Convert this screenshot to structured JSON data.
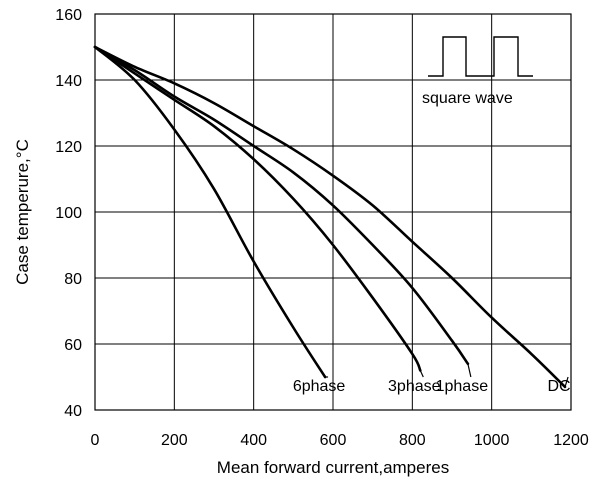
{
  "chart_data": {
    "type": "line",
    "xlabel": "Mean forward current,amperes",
    "ylabel": "Case temperure,°C",
    "xlim": [
      0,
      1200
    ],
    "ylim": [
      40,
      160
    ],
    "xticks": [
      0,
      200,
      400,
      600,
      800,
      1000,
      1200
    ],
    "yticks": [
      40,
      60,
      80,
      100,
      120,
      140,
      160
    ],
    "grid": true,
    "legend": "none",
    "annotation": "square wave",
    "series": [
      {
        "name": "6phase",
        "points": [
          [
            0,
            150
          ],
          [
            100,
            140
          ],
          [
            200,
            125
          ],
          [
            300,
            107
          ],
          [
            400,
            85
          ],
          [
            500,
            65
          ],
          [
            580,
            50
          ]
        ]
      },
      {
        "name": "3phase",
        "points": [
          [
            0,
            150
          ],
          [
            100,
            142
          ],
          [
            200,
            134
          ],
          [
            300,
            126
          ],
          [
            400,
            116
          ],
          [
            500,
            104
          ],
          [
            600,
            90
          ],
          [
            700,
            74
          ],
          [
            800,
            57
          ],
          [
            820,
            52
          ]
        ]
      },
      {
        "name": "1phase",
        "points": [
          [
            0,
            150
          ],
          [
            100,
            143
          ],
          [
            200,
            135
          ],
          [
            300,
            128
          ],
          [
            400,
            120
          ],
          [
            500,
            112
          ],
          [
            600,
            102
          ],
          [
            700,
            90
          ],
          [
            800,
            77
          ],
          [
            900,
            61
          ],
          [
            940,
            54
          ]
        ]
      },
      {
        "name": "DC",
        "points": [
          [
            0,
            150
          ],
          [
            100,
            144
          ],
          [
            200,
            139
          ],
          [
            300,
            133
          ],
          [
            400,
            126
          ],
          [
            500,
            119
          ],
          [
            600,
            111
          ],
          [
            700,
            102
          ],
          [
            800,
            91
          ],
          [
            900,
            80
          ],
          [
            1000,
            68
          ],
          [
            1100,
            57
          ],
          [
            1185,
            47
          ]
        ]
      }
    ]
  }
}
